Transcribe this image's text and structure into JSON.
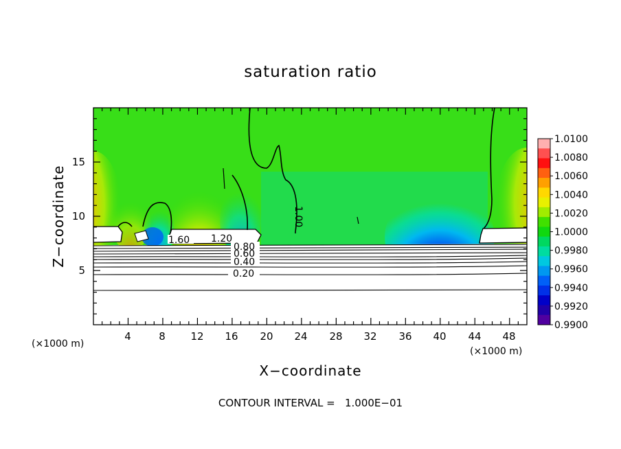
{
  "chart_data": {
    "type": "heatmap",
    "title": "saturation ratio",
    "xlabel": "X−coordinate",
    "ylabel": "Z−coordinate",
    "x_unit_left": "(×1000 m)",
    "x_unit_right": "(×1000 m)",
    "footer": "CONTOUR INTERVAL =   1.000E−01",
    "xlim": [
      0,
      50
    ],
    "ylim": [
      0,
      20
    ],
    "x_ticks": [
      "4",
      "8",
      "12",
      "16",
      "20",
      "24",
      "28",
      "32",
      "36",
      "40",
      "44",
      "48"
    ],
    "y_ticks": [
      "5",
      "10",
      "15"
    ],
    "colorbar": {
      "labels": [
        "1.0100",
        "1.0080",
        "1.0060",
        "1.0040",
        "1.0020",
        "1.0000",
        "0.9980",
        "0.9960",
        "0.9940",
        "0.9920",
        "0.9900"
      ],
      "colors": [
        "#ffb0b0",
        "#ff5050",
        "#ff1010",
        "#ff6010",
        "#ffa000",
        "#ffd800",
        "#e8f000",
        "#a0ec00",
        "#40e000",
        "#10d810",
        "#00d860",
        "#00dca0",
        "#00c8e0",
        "#0098f0",
        "#0060f8",
        "#0030e8",
        "#0000c8",
        "#2000a8",
        "#5000a0"
      ],
      "min": 0.99,
      "max": 1.01
    },
    "contour_labels": [
      "1.00",
      "1.60",
      "1.20",
      "0.80",
      "0.60",
      "0.40",
      "0.20"
    ],
    "series": [
      {
        "name": "1.00",
        "x": [
          0,
          5,
          10,
          15,
          20,
          25,
          30,
          35,
          40,
          45,
          50
        ],
        "y": [
          7.6,
          7.5,
          7.4,
          7.5,
          7.4,
          7.3,
          7.3,
          7.4,
          7.4,
          7.5,
          7.6
        ]
      }
    ]
  }
}
